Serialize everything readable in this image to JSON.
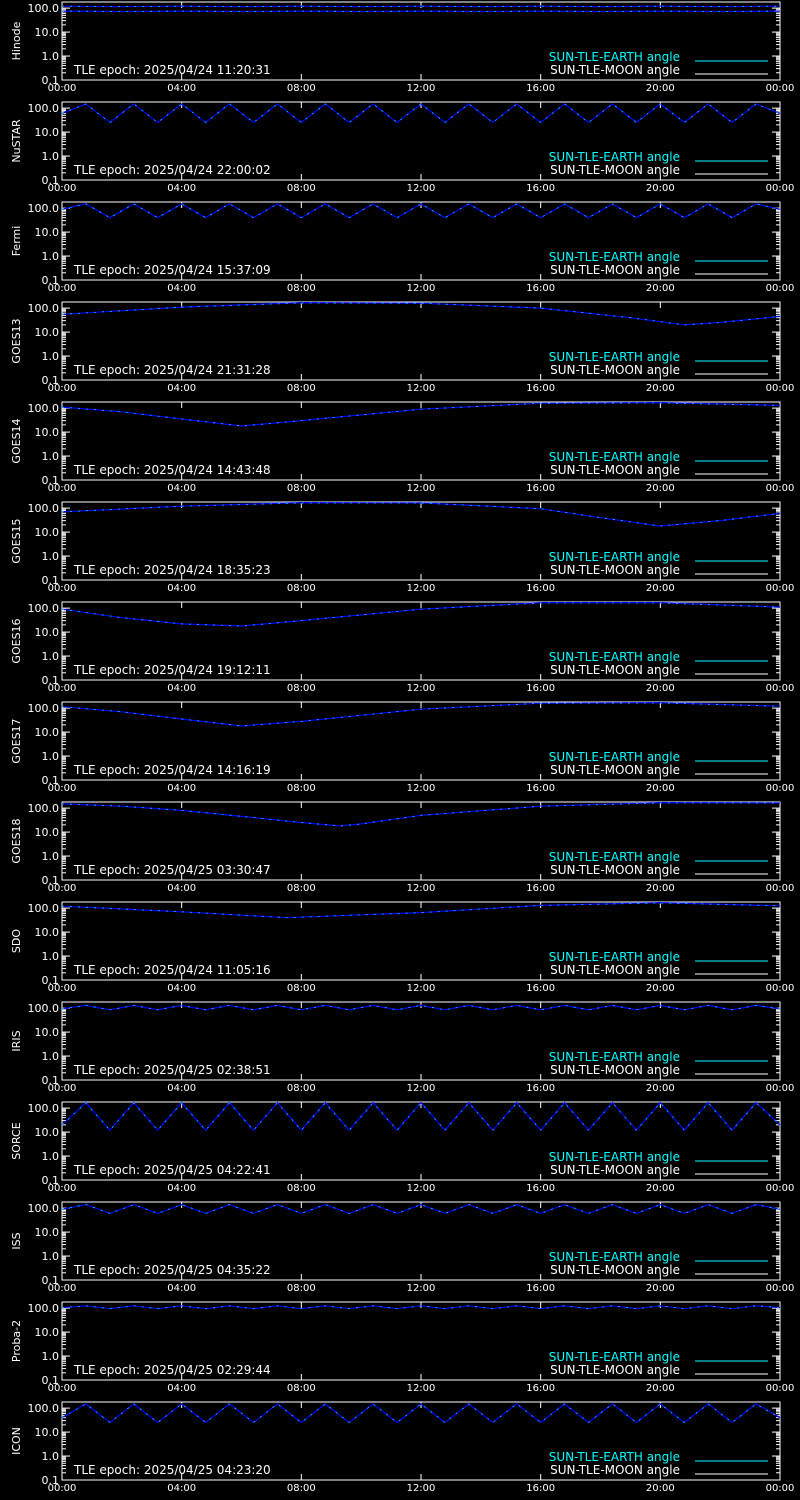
{
  "x_ticks": [
    "00:00",
    "04:00",
    "08:00",
    "12:00",
    "16:00",
    "20:00",
    "00:00"
  ],
  "y_ticks": [
    "100.0",
    "10.0",
    "1.0",
    "0.1"
  ],
  "legend": {
    "earth": "SUN-TLE-EARTH angle",
    "moon": "SUN-TLE-MOON angle"
  },
  "epoch_prefix": "TLE epoch:",
  "colors": {
    "background": "#000000",
    "frame": "#ffffff",
    "earth": "#00ffff",
    "moon": "#0000ff"
  },
  "chart_data": [
    {
      "type": "line",
      "satellite": "Hinode",
      "epoch": "2025/04/24 11:20:31",
      "x": [
        0,
        2,
        4,
        6,
        8,
        10,
        12,
        14,
        16,
        18,
        20,
        22,
        24
      ],
      "series": [
        {
          "name": "SUN-TLE-EARTH angle",
          "values": [
            120,
            116,
            120,
            116,
            120,
            116,
            120,
            116,
            120,
            116,
            120,
            116,
            120
          ]
        },
        {
          "name": "SUN-TLE-MOON angle",
          "values": [
            75,
            72,
            75,
            72,
            75,
            72,
            75,
            72,
            75,
            72,
            75,
            72,
            75
          ]
        }
      ],
      "ylim": [
        0.1,
        180
      ],
      "log_y": true
    },
    {
      "type": "line",
      "satellite": "NuSTAR",
      "epoch": "2025/04/24 22:00:02",
      "x": [
        0,
        0.8,
        1.6,
        2.4,
        3.2,
        4.0,
        4.8,
        5.6,
        6.4,
        7.2,
        8.0,
        8.8,
        9.6,
        10.4,
        11.2,
        12.0,
        12.8,
        13.6,
        14.4,
        15.2,
        16.0,
        16.8,
        17.6,
        18.4,
        19.2,
        20.0,
        20.8,
        21.6,
        22.4,
        23.2,
        24.0
      ],
      "series": [
        {
          "name": "SUN-TLE-EARTH angle",
          "values": [
            60,
            150,
            25,
            150,
            25,
            150,
            25,
            150,
            25,
            150,
            25,
            150,
            25,
            150,
            25,
            150,
            25,
            150,
            25,
            150,
            25,
            150,
            25,
            150,
            25,
            150,
            25,
            150,
            25,
            150,
            60
          ]
        }
      ],
      "ylim": [
        0.1,
        180
      ],
      "log_y": true
    },
    {
      "type": "line",
      "satellite": "Fermi",
      "epoch": "2025/04/24 15:37:09",
      "x": [
        0,
        0.8,
        1.6,
        2.4,
        3.2,
        4.0,
        4.8,
        5.6,
        6.4,
        7.2,
        8.0,
        8.8,
        9.6,
        10.4,
        11.2,
        12.0,
        12.8,
        13.6,
        14.4,
        15.2,
        16.0,
        16.8,
        17.6,
        18.4,
        19.2,
        20.0,
        20.8,
        21.6,
        22.4,
        23.2,
        24.0
      ],
      "series": [
        {
          "name": "SUN-TLE-EARTH angle",
          "values": [
            90,
            150,
            40,
            150,
            40,
            150,
            40,
            150,
            40,
            150,
            40,
            150,
            40,
            150,
            40,
            150,
            40,
            150,
            40,
            150,
            40,
            150,
            40,
            150,
            40,
            150,
            40,
            150,
            40,
            150,
            90
          ]
        }
      ],
      "ylim": [
        0.1,
        180
      ],
      "log_y": true
    },
    {
      "type": "line",
      "satellite": "GOES13",
      "epoch": "2025/04/24 21:31:28",
      "x": [
        0,
        4,
        8,
        12,
        16,
        19,
        20.8,
        22,
        24
      ],
      "series": [
        {
          "name": "SUN-TLE-EARTH angle",
          "values": [
            55,
            110,
            170,
            160,
            100,
            40,
            20,
            25,
            45
          ]
        }
      ],
      "ylim": [
        0.1,
        180
      ],
      "log_y": true
    },
    {
      "type": "line",
      "satellite": "GOES14",
      "epoch": "2025/04/24 14:43:48",
      "x": [
        0,
        2,
        4,
        6,
        8,
        12,
        16,
        20,
        24
      ],
      "series": [
        {
          "name": "SUN-TLE-EARTH angle",
          "values": [
            110,
            70,
            35,
            18,
            30,
            90,
            160,
            170,
            130
          ]
        }
      ],
      "ylim": [
        0.1,
        180
      ],
      "log_y": true
    },
    {
      "type": "line",
      "satellite": "GOES15",
      "epoch": "2025/04/24 18:35:23",
      "x": [
        0,
        4,
        8,
        12,
        16,
        18,
        20,
        22,
        24
      ],
      "series": [
        {
          "name": "SUN-TLE-EARTH angle",
          "values": [
            70,
            120,
            170,
            165,
            95,
            40,
            18,
            30,
            60
          ]
        }
      ],
      "ylim": [
        0.1,
        180
      ],
      "log_y": true
    },
    {
      "type": "line",
      "satellite": "GOES16",
      "epoch": "2025/04/24 19:12:11",
      "x": [
        0,
        2,
        4,
        6,
        8,
        12,
        16,
        20,
        24
      ],
      "series": [
        {
          "name": "SUN-TLE-EARTH angle",
          "values": [
            90,
            40,
            22,
            18,
            30,
            90,
            170,
            170,
            110
          ]
        }
      ],
      "ylim": [
        0.1,
        180
      ],
      "log_y": true
    },
    {
      "type": "line",
      "satellite": "GOES17",
      "epoch": "2025/04/24 14:16:19",
      "x": [
        0,
        2,
        4,
        6,
        8,
        12,
        16,
        20,
        24
      ],
      "series": [
        {
          "name": "SUN-TLE-EARTH angle",
          "values": [
            115,
            70,
            35,
            18,
            28,
            90,
            160,
            170,
            120
          ]
        }
      ],
      "ylim": [
        0.1,
        180
      ],
      "log_y": true
    },
    {
      "type": "line",
      "satellite": "GOES18",
      "epoch": "2025/04/25 03:30:47",
      "x": [
        0,
        2,
        4,
        6,
        8,
        9.3,
        10,
        12,
        16,
        20,
        24
      ],
      "series": [
        {
          "name": "SUN-TLE-EARTH angle",
          "values": [
            150,
            120,
            80,
            45,
            25,
            18,
            22,
            50,
            120,
            170,
            165
          ]
        }
      ],
      "ylim": [
        0.1,
        180
      ],
      "log_y": true
    },
    {
      "type": "line",
      "satellite": "SDO",
      "epoch": "2025/04/24 11:05:16",
      "x": [
        0,
        4,
        7.5,
        12,
        16,
        20,
        24
      ],
      "series": [
        {
          "name": "SUN-TLE-EARTH angle",
          "values": [
            120,
            70,
            40,
            65,
            130,
            170,
            125
          ]
        }
      ],
      "ylim": [
        0.1,
        180
      ],
      "log_y": true
    },
    {
      "type": "line",
      "satellite": "IRIS",
      "epoch": "2025/04/25 02:38:51",
      "x": [
        0,
        0.8,
        1.6,
        2.4,
        3.2,
        4.0,
        4.8,
        5.6,
        6.4,
        7.2,
        8.0,
        8.8,
        9.6,
        10.4,
        11.2,
        12.0,
        12.8,
        13.6,
        14.4,
        15.2,
        16.0,
        16.8,
        17.6,
        18.4,
        19.2,
        20.0,
        20.8,
        21.6,
        22.4,
        23.2,
        24.0
      ],
      "series": [
        {
          "name": "SUN-TLE-EARTH angle",
          "values": [
            95,
            130,
            85,
            130,
            85,
            130,
            85,
            130,
            85,
            130,
            85,
            130,
            85,
            130,
            85,
            130,
            85,
            130,
            85,
            130,
            85,
            130,
            85,
            130,
            85,
            130,
            85,
            130,
            85,
            130,
            95
          ]
        }
      ],
      "ylim": [
        0.1,
        180
      ],
      "log_y": true
    },
    {
      "type": "line",
      "satellite": "SORCE",
      "epoch": "2025/04/25 04:22:41",
      "x": [
        0,
        0.8,
        1.6,
        2.4,
        3.2,
        4.0,
        4.8,
        5.6,
        6.4,
        7.2,
        8.0,
        8.8,
        9.6,
        10.4,
        11.2,
        12.0,
        12.8,
        13.6,
        14.4,
        15.2,
        16.0,
        16.8,
        17.6,
        18.4,
        19.2,
        20.0,
        20.8,
        21.6,
        22.4,
        23.2,
        24.0
      ],
      "series": [
        {
          "name": "SUN-TLE-EARTH angle",
          "values": [
            20,
            170,
            12,
            170,
            12,
            170,
            12,
            170,
            12,
            170,
            12,
            170,
            12,
            170,
            12,
            170,
            12,
            170,
            12,
            170,
            12,
            170,
            12,
            170,
            12,
            170,
            12,
            170,
            12,
            170,
            20
          ]
        }
      ],
      "ylim": [
        0.1,
        180
      ],
      "log_y": true
    },
    {
      "type": "line",
      "satellite": "ISS",
      "epoch": "2025/04/25 04:35:22",
      "x": [
        0,
        0.8,
        1.6,
        2.4,
        3.2,
        4.0,
        4.8,
        5.6,
        6.4,
        7.2,
        8.0,
        8.8,
        9.6,
        10.4,
        11.2,
        12.0,
        12.8,
        13.6,
        14.4,
        15.2,
        16.0,
        16.8,
        17.6,
        18.4,
        19.2,
        20.0,
        20.8,
        21.6,
        22.4,
        23.2,
        24.0
      ],
      "series": [
        {
          "name": "SUN-TLE-EARTH angle",
          "values": [
            90,
            140,
            60,
            140,
            60,
            140,
            60,
            140,
            60,
            140,
            60,
            140,
            60,
            140,
            60,
            140,
            60,
            140,
            60,
            140,
            60,
            140,
            60,
            140,
            60,
            140,
            60,
            140,
            60,
            140,
            90
          ]
        }
      ],
      "ylim": [
        0.1,
        180
      ],
      "log_y": true
    },
    {
      "type": "line",
      "satellite": "Proba-2",
      "epoch": "2025/04/25 02:29:44",
      "x": [
        0,
        0.8,
        1.6,
        2.4,
        3.2,
        4.0,
        4.8,
        5.6,
        6.4,
        7.2,
        8.0,
        8.8,
        9.6,
        10.4,
        11.2,
        12.0,
        12.8,
        13.6,
        14.4,
        15.2,
        16.0,
        16.8,
        17.6,
        18.4,
        19.2,
        20.0,
        20.8,
        21.6,
        22.4,
        23.2,
        24.0
      ],
      "series": [
        {
          "name": "SUN-TLE-EARTH angle",
          "values": [
            105,
            125,
            95,
            125,
            95,
            125,
            95,
            125,
            95,
            125,
            95,
            125,
            95,
            125,
            95,
            125,
            95,
            125,
            95,
            125,
            95,
            125,
            95,
            125,
            95,
            125,
            95,
            125,
            95,
            125,
            105
          ]
        }
      ],
      "ylim": [
        0.1,
        180
      ],
      "log_y": true
    },
    {
      "type": "line",
      "satellite": "ICON",
      "epoch": "2025/04/25 04:23:20",
      "x": [
        0,
        0.8,
        1.6,
        2.4,
        3.2,
        4.0,
        4.8,
        5.6,
        6.4,
        7.2,
        8.0,
        8.8,
        9.6,
        10.4,
        11.2,
        12.0,
        12.8,
        13.6,
        14.4,
        15.2,
        16.0,
        16.8,
        17.6,
        18.4,
        19.2,
        20.0,
        20.8,
        21.6,
        22.4,
        23.2,
        24.0
      ],
      "series": [
        {
          "name": "SUN-TLE-EARTH angle",
          "values": [
            40,
            150,
            25,
            150,
            25,
            150,
            25,
            150,
            25,
            150,
            25,
            150,
            25,
            150,
            25,
            150,
            25,
            150,
            25,
            150,
            25,
            150,
            25,
            150,
            25,
            150,
            25,
            150,
            25,
            150,
            40
          ]
        }
      ],
      "ylim": [
        0.1,
        180
      ],
      "log_y": true
    }
  ]
}
